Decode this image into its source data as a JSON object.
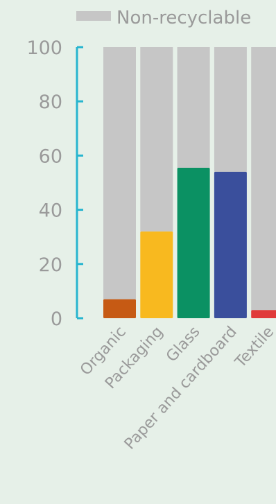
{
  "chart_data": {
    "type": "bar",
    "stacked": true,
    "categories": [
      "Organic",
      "Packaging",
      "Glass",
      "Paper and cardboard",
      "Textile"
    ],
    "series": [
      {
        "name": "",
        "values": [
          7,
          32,
          55.5,
          54,
          3
        ]
      },
      {
        "name": "Non-recyclable",
        "values": [
          93,
          68,
          44.5,
          46,
          97
        ]
      }
    ],
    "bar_colors": [
      "#c65a14",
      "#f8b91f",
      "#0b9163",
      "#3a4f9c",
      "#e03a3a"
    ],
    "remainder_color": "#c6c6c6",
    "axis_color": "#27b5cf",
    "text_color": "#9a9a9a",
    "ylim": [
      0,
      100
    ],
    "yticks": [
      "0",
      "20",
      "40",
      "60",
      "80",
      "100"
    ],
    "legend": {
      "label": "Non-recyclable",
      "position": "top-right"
    },
    "grid": false
  }
}
